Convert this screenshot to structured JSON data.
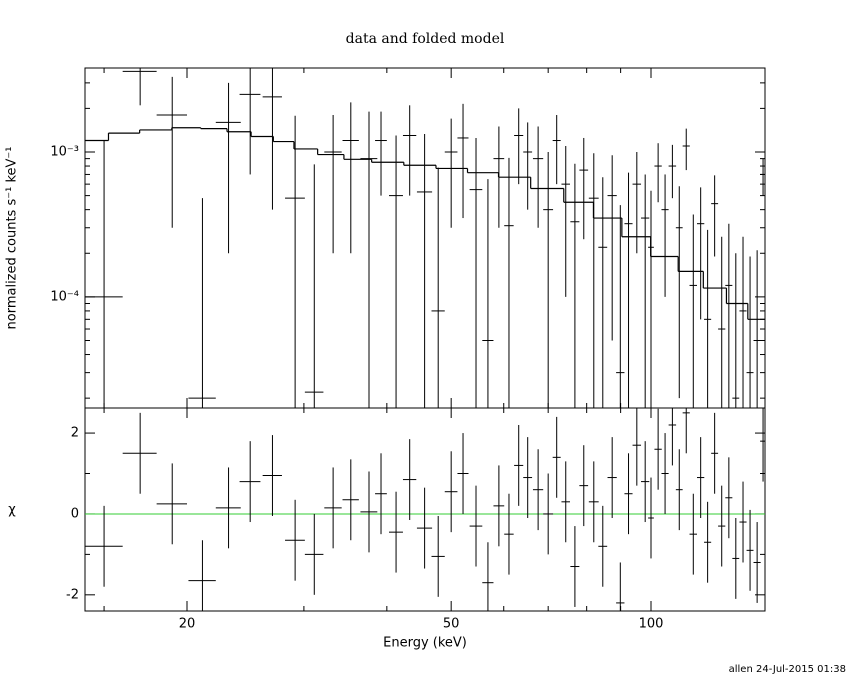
{
  "chart_data": {
    "type": "errorbar",
    "title": "data and folded model",
    "x_label": "Energy (keV)",
    "log_x": true,
    "xlim": [
      14.04,
      148.5
    ],
    "xticks": [
      20,
      50,
      100
    ],
    "xminor": [
      15,
      30,
      40,
      60,
      70,
      80,
      90
    ],
    "panels": [
      {
        "y_label": "normalized counts s⁻¹ keV⁻¹",
        "log_y": true,
        "ylim": [
          1.71e-05,
          0.0038
        ],
        "yticks": [
          {
            "value": 0.0001,
            "label": "10⁻⁴"
          },
          {
            "value": 0.001,
            "label": "10⁻³"
          }
        ],
        "yminor": [
          2e-05,
          3e-05,
          4e-05,
          5e-05,
          6e-05,
          7e-05,
          8e-05,
          9e-05,
          0.0002,
          0.0003,
          0.0004,
          0.0005,
          0.0006,
          0.0007,
          0.0008,
          0.0009,
          0.002,
          0.003
        ],
        "data": {
          "x": [
            15.0,
            17.0,
            19.0,
            21.1,
            23.1,
            24.9,
            26.9,
            29.1,
            31.1,
            33.2,
            35.3,
            37.6,
            39.2,
            41.3,
            43.3,
            45.6,
            47.8,
            50,
            52.1,
            54.5,
            56.8,
            59.0,
            61.1,
            63.2,
            65.2,
            67.6,
            70.0,
            72.1,
            74.4,
            76.8,
            79.2,
            82.0,
            84.6,
            87.4,
            89.9,
            92.5,
            95.2,
            98,
            100,
            102.5,
            105,
            107.7,
            110.3,
            113,
            115.8,
            118.8,
            121.7,
            124.7,
            127.8,
            131,
            134.2,
            137.6,
            141,
            144.5,
            147.5
          ],
          "xerr": [
            1.0,
            1.0,
            1.0,
            1.0,
            1.0,
            0.9,
            0.9,
            1.0,
            1.0,
            1.0,
            1.0,
            1.1,
            0.8,
            1.0,
            1.0,
            1.2,
            1.1,
            1.1,
            1.0,
            1.2,
            1.1,
            1.1,
            1.0,
            1.0,
            1.0,
            1.2,
            1.2,
            1.0,
            1.1,
            1.2,
            1.2,
            1.4,
            1.3,
            1.4,
            1.3,
            1.3,
            1.4,
            1.4,
            1.0,
            1.3,
            1.3,
            1.4,
            1.3,
            1.4,
            1.5,
            1.5,
            1.5,
            1.5,
            1.6,
            1.6,
            1.6,
            1.7,
            1.7,
            1.8,
            1.5
          ],
          "values": [
            0.0001,
            0.0036,
            0.0018,
            2e-05,
            0.0016,
            0.0025,
            0.0024,
            0.00048,
            2.2e-05,
            0.001,
            0.0012,
            0.0009,
            0.0012,
            0.0005,
            0.0013,
            0.00053,
            8e-05,
            0.001,
            0.00125,
            0.00055,
            5e-05,
            0.0009,
            0.00031,
            0.0013,
            0.001,
            0.0009,
            0.0004,
            0.0012,
            0.0006,
            0.00033,
            0.00075,
            0.00048,
            0.00022,
            0.0005,
            3e-05,
            0.00032,
            0.0006,
            0.00035,
            0.00022,
            0.0008,
            0.0004,
            0.0008,
            0.0003,
            0.0011,
            0.00012,
            0.00032,
            7e-05,
            0.00044,
            6e-05,
            0.00012,
            2e-05,
            8e-05,
            3e-05,
            5e-05,
            0.0007
          ],
          "errors": [
            0.0011,
            0.0015,
            0.0015,
            0.00046,
            0.0014,
            0.0018,
            0.002,
            0.0013,
            0.0008,
            0.0008,
            0.001,
            0.001,
            0.0007,
            0.0008,
            0.0008,
            0.0008,
            0.0007,
            0.0007,
            0.0009,
            0.0007,
            0.0006,
            0.0006,
            0.0006,
            0.0007,
            0.0006,
            0.0006,
            0.0006,
            0.0006,
            0.0005,
            0.0005,
            0.0005,
            0.0005,
            0.00045,
            0.00045,
            0.0004,
            0.0004,
            0.0004,
            0.00035,
            0.00032,
            0.00035,
            0.0003,
            0.00032,
            0.00028,
            0.00035,
            0.00025,
            0.00025,
            0.00022,
            0.00025,
            0.0002,
            0.0002,
            0.00018,
            0.00018,
            0.00016,
            0.00016,
            0.0002
          ]
        },
        "model": {
          "x": [
            14.5,
            16,
            18,
            20,
            22,
            24,
            26,
            28,
            30,
            33,
            36,
            40,
            45,
            50,
            56,
            62,
            70,
            78,
            86,
            95,
            105,
            115,
            125,
            135,
            145
          ],
          "values": [
            0.0012,
            0.00135,
            0.00142,
            0.00147,
            0.00145,
            0.00138,
            0.00128,
            0.00118,
            0.00105,
            0.00096,
            0.00089,
            0.00085,
            0.00081,
            0.00077,
            0.00072,
            0.00067,
            0.00056,
            0.00045,
            0.00035,
            0.00026,
            0.00019,
            0.00015,
            0.000115,
            9e-05,
            7e-05
          ]
        }
      },
      {
        "y_label": "χ",
        "log_y": false,
        "ylim": [
          -2.4,
          2.62
        ],
        "yticks": [
          -2,
          0,
          2
        ],
        "yminor": [
          -1,
          1
        ],
        "data": {
          "values": [
            -0.8,
            1.5,
            0.25,
            -1.65,
            0.15,
            0.8,
            0.95,
            -0.65,
            -1.0,
            0.15,
            0.35,
            0.05,
            0.5,
            -0.45,
            0.85,
            -0.35,
            -1.05,
            0.55,
            1.0,
            -0.3,
            -1.7,
            0.2,
            -0.5,
            1.2,
            0.9,
            0.6,
            0,
            1.4,
            0.3,
            -1.3,
            0.7,
            0.3,
            -0.8,
            0.9,
            -2.2,
            0.5,
            1.7,
            0.8,
            -0.1,
            1.6,
            1.0,
            2.2,
            0.6,
            2.5,
            -0.5,
            0.9,
            -0.7,
            1.5,
            -0.3,
            0.4,
            -1.1,
            -0.2,
            -0.9,
            -1.2,
            1.8
          ],
          "errors": [
            1,
            1,
            1,
            1,
            1,
            1,
            1,
            1,
            1,
            1,
            1,
            1,
            1,
            1,
            1,
            1,
            1,
            1,
            1,
            1,
            1,
            1,
            1,
            1,
            1,
            1,
            1,
            1,
            1,
            1,
            1,
            1,
            1,
            1,
            1,
            1,
            1,
            1,
            1,
            1,
            1,
            1,
            1,
            1,
            1,
            1,
            1,
            1,
            1,
            1,
            1,
            1,
            1,
            1,
            1
          ]
        },
        "reference_line": {
          "value": 0,
          "color": "#33cc33"
        }
      }
    ]
  },
  "footer": "allen 24-Jul-2015 01:38"
}
